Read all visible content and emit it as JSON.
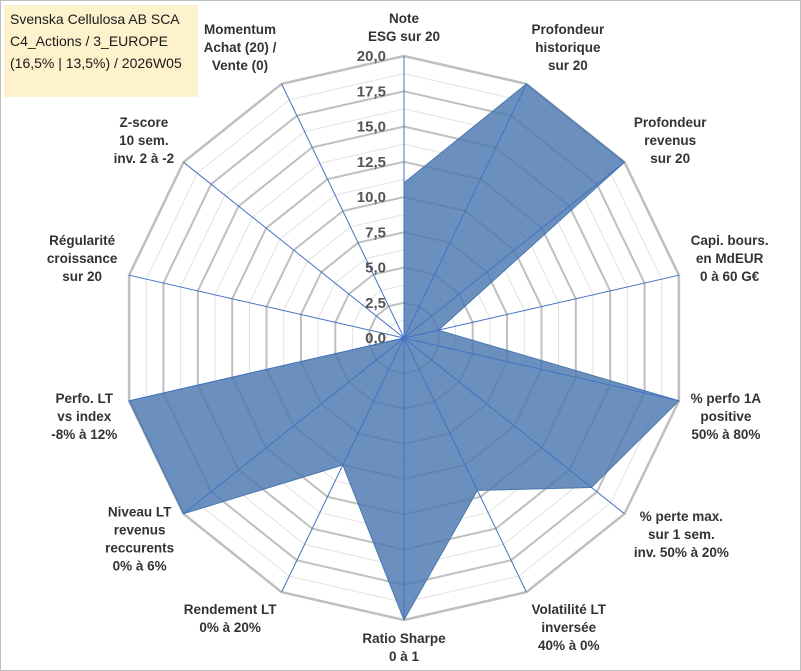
{
  "title_box": {
    "line1": "Svenska Cellulosa AB SCA",
    "line2": "C4_Actions / 3_EUROPE",
    "line3": "(16,5% | 13,5%) / 2026W05",
    "background": "#fdf2cc"
  },
  "chart_data": {
    "type": "radar",
    "axis_range": [
      0,
      20
    ],
    "tick_step": 2.5,
    "tick_labels": [
      "0,0",
      "2,5",
      "5,0",
      "7,5",
      "10,0",
      "12,5",
      "15,0",
      "17,5",
      "20,0"
    ],
    "series": [
      {
        "name": "Svenska Cellulosa AB SCA",
        "color": "#4a78b0",
        "categories": [
          {
            "label": [
              "Note",
              "ESG sur 20"
            ],
            "value": 11.0
          },
          {
            "label": [
              "Profondeur",
              "historique",
              "sur 20"
            ],
            "value": 20.0
          },
          {
            "label": [
              "Profondeur",
              "revenus",
              "sur 20"
            ],
            "value": 20.0
          },
          {
            "label": [
              "Capi. bours.",
              "en MdEUR",
              "0 à 60 G€"
            ],
            "value": 2.5
          },
          {
            "label": [
              "% perfo 1A",
              "positive",
              "50% à 80%"
            ],
            "value": 20.0
          },
          {
            "label": [
              "% perte max.",
              "sur 1 sem.",
              "inv. 50% à 20%"
            ],
            "value": 17.0
          },
          {
            "label": [
              "Volatilité LT",
              "inversée",
              "40% à 0%"
            ],
            "value": 12.0
          },
          {
            "label": [
              "Ratio Sharpe",
              "0 à 1"
            ],
            "value": 20.0
          },
          {
            "label": [
              "Rendement LT",
              "0% à 20%"
            ],
            "value": 10.0
          },
          {
            "label": [
              "Niveau LT",
              "revenus",
              "reccurents",
              "0% à 6%"
            ],
            "value": 20.0
          },
          {
            "label": [
              "Perfo. LT",
              "vs index",
              "-8% à 12%"
            ],
            "value": 20.0
          },
          {
            "label": [
              "Régularité",
              "croissance",
              "sur 20"
            ],
            "value": 0.0
          },
          {
            "label": [
              "Z-score",
              "10 sem.",
              "inv. 2 à -2"
            ],
            "value": 0.0
          },
          {
            "label": [
              "Momentum",
              "Achat (20) /",
              "Vente (0)"
            ],
            "value": 0.0
          }
        ]
      }
    ],
    "colors": {
      "fill": "#4a78b0",
      "spoke": "#4472c4",
      "major_grid": "#bfbfbf",
      "minor_grid": "#e2e2e2"
    }
  }
}
